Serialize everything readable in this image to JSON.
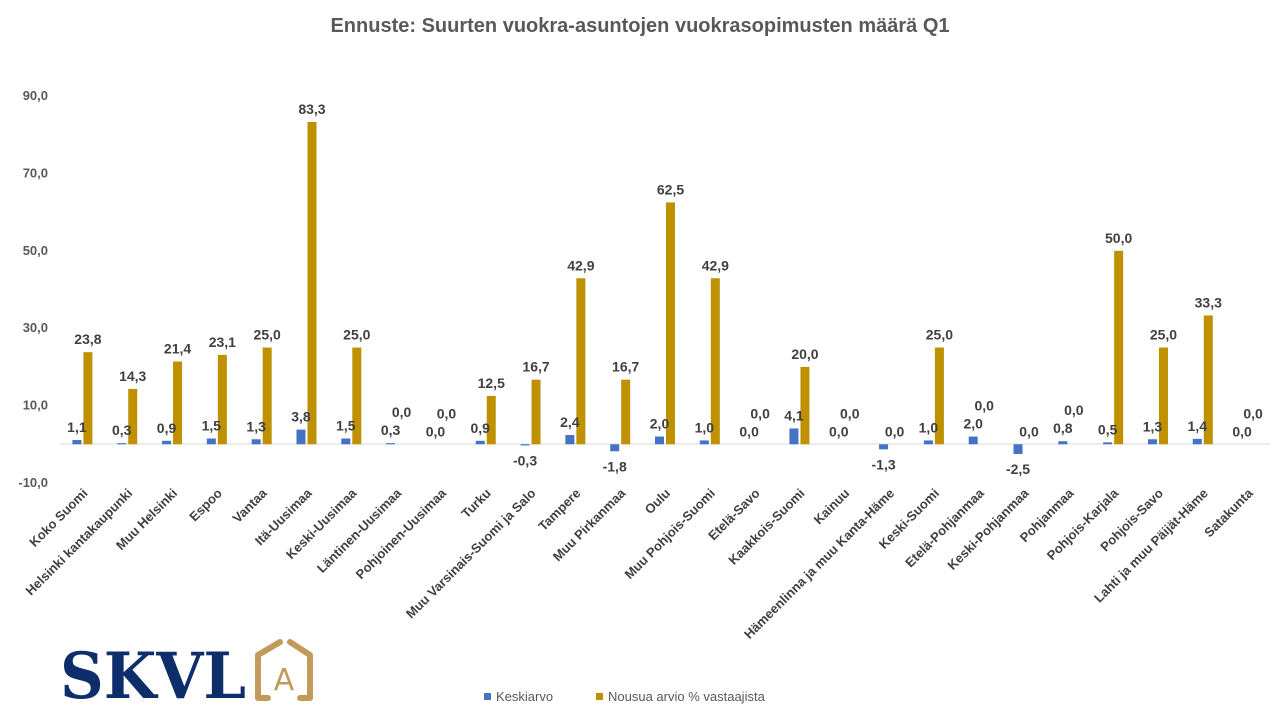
{
  "chart_data": {
    "type": "bar",
    "title": "Ennuste: Suurten vuokra-asuntojen vuokrasopimusten määrä Q1",
    "xlabel": "",
    "ylabel": "",
    "ylim": [
      -10,
      90
    ],
    "yticks": [
      -10,
      10,
      30,
      50,
      70,
      90
    ],
    "ytick_labels": [
      "-10,0",
      "10,0",
      "30,0",
      "50,0",
      "70,0",
      "90,0"
    ],
    "grid": false,
    "legend_position": "bottom",
    "categories": [
      "Koko Suomi",
      "Helsinki kantakaupunki",
      "Muu Helsinki",
      "Espoo",
      "Vantaa",
      "Itä-Uusimaa",
      "Keski-Uusimaa",
      "Läntinen-Uusimaa",
      "Pohjoinen-Uusimaa",
      "Turku",
      "Muu Varsinais-Suomi ja Salo",
      "Tampere",
      "Muu Pirkanmaa",
      "Oulu",
      "Muu Pohjois-Suomi",
      "Etelä-Savo",
      "Kaakkois-Suomi",
      "Kainuu",
      "Hämeenlinna ja muu Kanta-Häme",
      "Keski-Suomi",
      "Etelä-Pohjanmaa",
      "Keski-Pohjanmaa",
      "Pohjanmaa",
      "Pohjois-Karjala",
      "Pohjois-Savo",
      "Lahti ja muu Päijät-Häme",
      "Satakunta"
    ],
    "series": [
      {
        "name": "Keskiarvo",
        "color": "#4472C4",
        "values": [
          1.1,
          0.3,
          0.9,
          1.5,
          1.3,
          3.8,
          1.5,
          0.3,
          0.0,
          0.9,
          -0.3,
          2.4,
          -1.8,
          2.0,
          1.0,
          0.0,
          4.1,
          0.0,
          -1.3,
          1.0,
          2.0,
          -2.5,
          0.8,
          0.5,
          1.3,
          1.4,
          0.0
        ]
      },
      {
        "name": "Nousua arvio % vastaajista",
        "color": "#BF9000",
        "values": [
          23.8,
          14.3,
          21.4,
          23.1,
          25.0,
          83.3,
          25.0,
          0.0,
          0.0,
          12.5,
          16.7,
          42.9,
          16.7,
          62.5,
          42.9,
          0.0,
          20.0,
          0.0,
          0.0,
          25.0,
          0.0,
          0.0,
          0.0,
          50.0,
          25.0,
          33.3,
          0.0
        ]
      }
    ]
  },
  "logo": {
    "text": "SKVL",
    "mark": "A"
  }
}
